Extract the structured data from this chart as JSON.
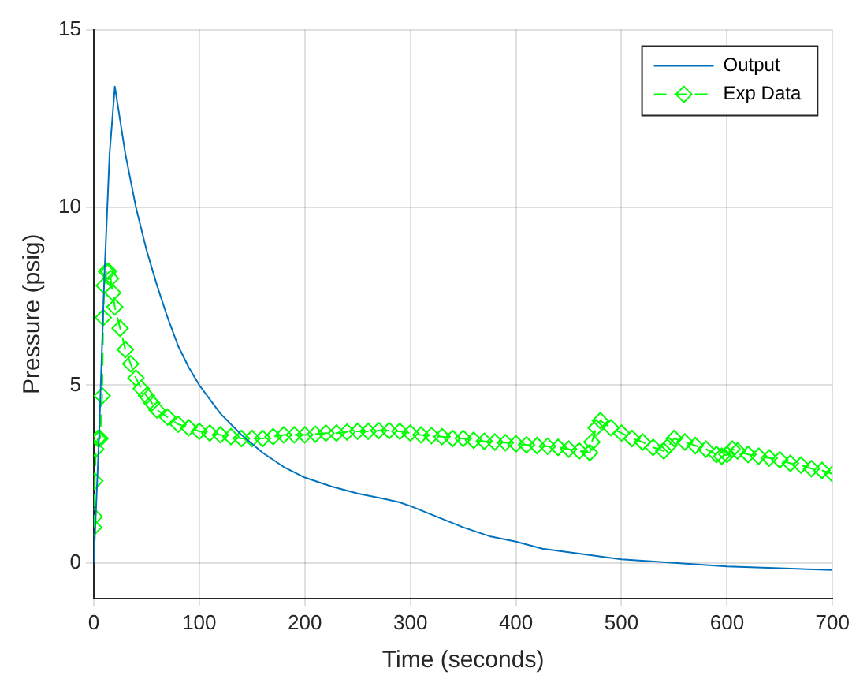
{
  "chart_data": {
    "type": "line",
    "xlabel": "Time (seconds)",
    "ylabel": "Pressure (psig)",
    "xlim": [
      0,
      700
    ],
    "xticks": [
      0,
      100,
      200,
      300,
      400,
      500,
      600,
      700
    ],
    "ylim": [
      -1,
      15
    ],
    "yticks": [
      0,
      5,
      10,
      15
    ],
    "grid": true,
    "legend": "top right",
    "series": [
      {
        "name": "Output",
        "color": "#0072bd",
        "marker": "none",
        "line_style": "solid",
        "x": [
          0,
          5,
          10,
          15,
          20,
          30,
          40,
          50,
          60,
          70,
          80,
          90,
          100,
          120,
          140,
          160,
          180,
          200,
          225,
          250,
          275,
          290,
          300,
          325,
          350,
          375,
          400,
          425,
          450,
          475,
          500,
          550,
          600,
          650,
          700
        ],
        "values": [
          0,
          3.5,
          8,
          11.5,
          13.4,
          11.5,
          10,
          8.8,
          7.8,
          6.9,
          6.1,
          5.5,
          5.0,
          4.2,
          3.6,
          3.1,
          2.7,
          2.4,
          2.15,
          1.95,
          1.8,
          1.7,
          1.6,
          1.3,
          1.0,
          0.75,
          0.6,
          0.4,
          0.3,
          0.2,
          0.1,
          0,
          -0.1,
          -0.15,
          -0.2
        ]
      },
      {
        "name": "Exp Data",
        "color": "#00ff00",
        "marker": "diamond",
        "line_style": "dashed",
        "x": [
          0,
          0.5,
          1,
          2,
          4,
          6,
          8,
          9,
          10,
          12,
          14,
          16,
          18,
          20,
          25,
          30,
          35,
          40,
          45,
          50,
          55,
          60,
          70,
          80,
          90,
          100,
          110,
          120,
          130,
          140,
          150,
          160,
          170,
          180,
          190,
          200,
          210,
          220,
          230,
          240,
          250,
          260,
          270,
          280,
          290,
          300,
          310,
          320,
          330,
          340,
          350,
          360,
          370,
          380,
          390,
          400,
          410,
          420,
          430,
          440,
          450,
          460,
          470,
          472,
          476,
          480,
          490,
          500,
          510,
          520,
          530,
          540,
          545,
          550,
          560,
          570,
          580,
          590,
          595,
          600,
          605,
          610,
          620,
          630,
          640,
          650,
          660,
          670,
          680,
          690,
          700
        ],
        "values": [
          1.0,
          1.3,
          2.3,
          3.2,
          3.5,
          3.5,
          4.7,
          6.9,
          7.8,
          8.2,
          8.2,
          8.0,
          7.6,
          7.2,
          6.6,
          6.0,
          5.6,
          5.2,
          4.9,
          4.7,
          4.5,
          4.3,
          4.1,
          3.9,
          3.8,
          3.7,
          3.65,
          3.6,
          3.55,
          3.5,
          3.5,
          3.5,
          3.55,
          3.6,
          3.6,
          3.6,
          3.62,
          3.65,
          3.65,
          3.68,
          3.7,
          3.7,
          3.72,
          3.72,
          3.7,
          3.65,
          3.6,
          3.58,
          3.55,
          3.5,
          3.5,
          3.45,
          3.42,
          3.4,
          3.38,
          3.35,
          3.32,
          3.3,
          3.28,
          3.25,
          3.2,
          3.15,
          3.1,
          3.4,
          3.8,
          4.0,
          3.8,
          3.65,
          3.5,
          3.4,
          3.25,
          3.15,
          3.3,
          3.5,
          3.4,
          3.3,
          3.2,
          3.05,
          3.0,
          3.05,
          3.2,
          3.15,
          3.05,
          3.0,
          2.95,
          2.9,
          2.8,
          2.75,
          2.65,
          2.6,
          2.5
        ]
      }
    ]
  }
}
